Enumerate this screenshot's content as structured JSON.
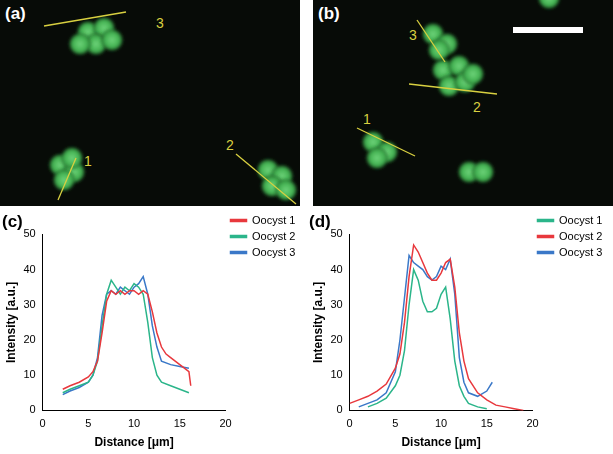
{
  "images": [
    {
      "label": "(a)",
      "profile_labels": [
        "1",
        "2",
        "3"
      ]
    },
    {
      "label": "(b)",
      "profile_labels": [
        "1",
        "2",
        "3"
      ]
    }
  ],
  "chart_data": [
    {
      "type": "line",
      "title": "(c)",
      "x_label": "Distance [μm]",
      "y_label": "Intensity [a.u.]",
      "xlim": [
        0,
        20
      ],
      "xticks": [
        0,
        5,
        10,
        15,
        20
      ],
      "ylim": [
        0,
        50
      ],
      "yticks": [
        0,
        10,
        20,
        30,
        40,
        50
      ],
      "grid": false,
      "legend": "upper right",
      "series": [
        {
          "name": "Oocyst 1",
          "color": "#e8383d",
          "x": [
            2.2,
            3,
            4,
            5,
            5.5,
            6,
            6.5,
            7,
            7.5,
            8,
            8.5,
            9,
            9.5,
            10,
            10.5,
            11,
            11.5,
            12,
            12.5,
            13,
            13.5,
            14,
            14.5,
            15,
            15.5,
            16,
            16.2
          ],
          "values": [
            6,
            7,
            8,
            9.5,
            11,
            14,
            22,
            31,
            34,
            33,
            34,
            33,
            34,
            34,
            33,
            34,
            33,
            28,
            22,
            18,
            16,
            15,
            14,
            13,
            12,
            11,
            7
          ]
        },
        {
          "name": "Oocyst 2",
          "color": "#2bb58a",
          "x": [
            2.2,
            3,
            4,
            5,
            5.5,
            6,
            6.5,
            7,
            7.5,
            8,
            8.5,
            9,
            9.5,
            10,
            10.5,
            11,
            11.5,
            12,
            12.5,
            13,
            14,
            15,
            16
          ],
          "values": [
            5,
            6,
            7,
            8,
            10,
            14,
            24,
            33,
            37,
            35,
            33,
            35,
            34,
            36,
            35,
            33,
            25,
            15,
            10,
            8,
            7,
            6,
            5
          ]
        },
        {
          "name": "Oocyst 3",
          "color": "#3a78c8",
          "x": [
            2.2,
            3,
            4,
            5,
            5.5,
            6,
            6.5,
            7,
            7.5,
            8,
            8.5,
            9,
            9.5,
            10,
            10.5,
            11,
            11.5,
            12,
            12.5,
            13,
            14,
            15,
            16
          ],
          "values": [
            4.5,
            5.5,
            6.5,
            8,
            10,
            15,
            27,
            33,
            34,
            33,
            35,
            34,
            33,
            35,
            36,
            38,
            33,
            24,
            18,
            14,
            13,
            12.5,
            12
          ]
        }
      ]
    },
    {
      "type": "line",
      "title": "(d)",
      "x_label": "Distance [μm]",
      "y_label": "Intensity [a.u.]",
      "xlim": [
        0,
        20
      ],
      "xticks": [
        0,
        5,
        10,
        15,
        20
      ],
      "ylim": [
        0,
        50
      ],
      "yticks": [
        0,
        10,
        20,
        30,
        40,
        50
      ],
      "grid": false,
      "legend": "upper right",
      "series": [
        {
          "name": "Oocyst 1",
          "color": "#2bb58a",
          "x": [
            2,
            3,
            4,
            5,
            5.5,
            6,
            6.5,
            7,
            7.5,
            8,
            8.5,
            9,
            9.5,
            10,
            10.5,
            11,
            11.5,
            12,
            12.5,
            13,
            14,
            15
          ],
          "values": [
            1,
            2,
            3.5,
            7,
            10,
            17,
            30,
            40,
            37,
            31,
            28,
            28,
            29,
            33,
            35,
            26,
            14,
            7,
            4,
            2,
            1,
            0.5
          ]
        },
        {
          "name": "Oocyst 2",
          "color": "#e8383d",
          "x": [
            0,
            1,
            2,
            3,
            4,
            5,
            5.5,
            6,
            6.5,
            7,
            7.5,
            8,
            8.5,
            9,
            9.5,
            10,
            10.5,
            11,
            11.5,
            12,
            12.5,
            13,
            14,
            15,
            16,
            17,
            18,
            19
          ],
          "values": [
            2,
            3,
            4,
            5.5,
            7.5,
            12,
            16,
            25,
            38,
            47,
            45,
            42,
            39,
            37,
            37,
            39,
            42,
            43,
            35,
            22,
            14,
            9,
            5,
            3,
            1.5,
            1,
            0.5,
            0
          ]
        },
        {
          "name": "Oocyst 3",
          "color": "#3a78c8",
          "x": [
            1,
            2,
            3,
            4,
            5,
            5.5,
            6,
            6.5,
            7,
            7.5,
            8,
            8.5,
            9,
            9.5,
            10,
            10.5,
            11,
            11.5,
            12,
            12.5,
            13,
            14,
            15,
            15.6
          ],
          "values": [
            1,
            2,
            3,
            5,
            11,
            20,
            32,
            44,
            42,
            41,
            40,
            38,
            37,
            38,
            41,
            40,
            43,
            33,
            15,
            8,
            5,
            4,
            5.5,
            8
          ]
        }
      ]
    }
  ]
}
